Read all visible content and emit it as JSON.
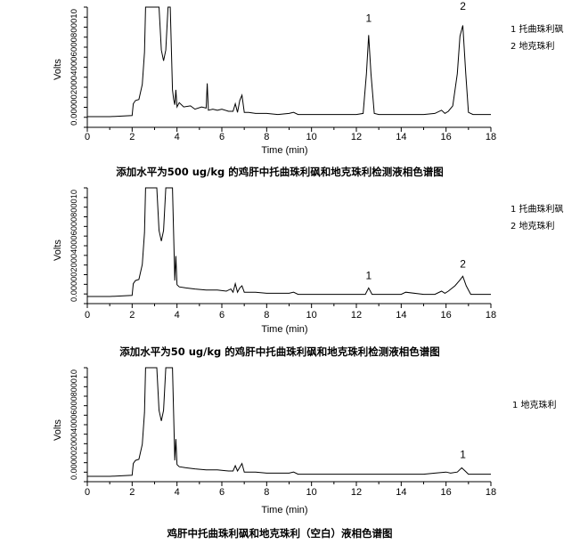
{
  "chart_data": [
    {
      "type": "line",
      "caption": "添加水平为500 ug/kg 的鸡肝中托曲珠利砜和地克珠利检测液相色谱图",
      "xlabel": "Time (min)",
      "ylabel": "Volts",
      "xlim": [
        0,
        18
      ],
      "x_ticks": [
        "0",
        "2",
        "4",
        "6",
        "8",
        "10",
        "12",
        "14",
        "16",
        "18"
      ],
      "y_tick_text": "0.00000200040006000800010",
      "legend": [
        "1  托曲珠利砜",
        "2  地克珠利"
      ],
      "peak_labels": [
        {
          "text": "1",
          "x": 12.55,
          "y": 0.0085
        },
        {
          "text": "2",
          "x": 16.75,
          "y": 0.0096
        }
      ],
      "series": [
        {
          "x": [
            0,
            1,
            2,
            2.05,
            2.15,
            2.3,
            2.45,
            2.55,
            2.6,
            2.7,
            2.8,
            3.0,
            3.1,
            3.2,
            3.3,
            3.4,
            3.5,
            3.6,
            3.7,
            3.8,
            3.85,
            3.9,
            3.95,
            4.0,
            4.1,
            4.3,
            4.6,
            4.8,
            5.1,
            5.3,
            5.35,
            5.4,
            5.6,
            5.8,
            6.0,
            6.3,
            6.5,
            6.6,
            6.7,
            6.8,
            6.9,
            7.0,
            7.2,
            7.5,
            8.0,
            8.5,
            9.0,
            9.2,
            9.4,
            10.0,
            11.0,
            12.0,
            12.3,
            12.45,
            12.55,
            12.65,
            12.8,
            13.0,
            14.0,
            15.0,
            15.5,
            15.8,
            15.95,
            16.1,
            16.3,
            16.5,
            16.62,
            16.75,
            16.88,
            17.0,
            17.2,
            17.5,
            18.0
          ],
          "y": [
            0,
            0,
            0.0001,
            0.0012,
            0.0015,
            0.0016,
            0.003,
            0.006,
            0.0102,
            0.0102,
            0.0102,
            0.0102,
            0.0102,
            0.0102,
            0.0062,
            0.0052,
            0.0062,
            0.0102,
            0.0102,
            0.0025,
            0.0016,
            0.0011,
            0.0025,
            0.0009,
            0.0013,
            0.0009,
            0.001,
            0.0007,
            0.0009,
            0.0008,
            0.0031,
            0.0006,
            0.0007,
            0.0006,
            0.0007,
            0.0005,
            0.0005,
            0.0012,
            0.0004,
            0.0015,
            0.002,
            0.0004,
            0.0004,
            0.0003,
            0.0003,
            0.0002,
            0.0003,
            0.0004,
            0.0002,
            0.0002,
            0.0002,
            0.0002,
            0.0003,
            0.004,
            0.0076,
            0.004,
            0.0003,
            0.0002,
            0.0002,
            0.0002,
            0.0003,
            0.0006,
            0.0003,
            0.0005,
            0.001,
            0.004,
            0.0075,
            0.0085,
            0.004,
            0.0004,
            0.0002,
            0.0002,
            0.0002
          ]
        }
      ]
    },
    {
      "type": "line",
      "caption": "添加水平为50 ug/kg 的鸡肝中托曲珠利砜和地克珠利检测液相色谱图",
      "xlabel": "Time (min)",
      "ylabel": "Volts",
      "xlim": [
        0,
        18
      ],
      "x_ticks": [
        "0",
        "2",
        "4",
        "6",
        "8",
        "10",
        "12",
        "14",
        "16",
        "18"
      ],
      "y_tick_text": "0.00000200040006000800010",
      "legend": [
        "1  托曲珠利砜",
        "2  地克珠利"
      ],
      "peak_labels": [
        {
          "text": "1",
          "x": 12.55,
          "y": 0.0013
        },
        {
          "text": "2",
          "x": 16.75,
          "y": 0.0024
        }
      ],
      "series": [
        {
          "x": [
            0,
            1,
            2,
            2.05,
            2.15,
            2.3,
            2.45,
            2.55,
            2.6,
            2.7,
            3.0,
            3.1,
            3.2,
            3.3,
            3.4,
            3.5,
            3.6,
            3.8,
            3.9,
            3.95,
            4.0,
            4.1,
            4.4,
            4.8,
            5.3,
            5.8,
            6.2,
            6.4,
            6.5,
            6.6,
            6.7,
            6.8,
            6.9,
            7.0,
            7.5,
            8.0,
            9.0,
            9.2,
            9.4,
            10.0,
            11.0,
            12.0,
            12.4,
            12.55,
            12.7,
            13.0,
            14.0,
            14.2,
            15.0,
            15.5,
            15.8,
            15.95,
            16.1,
            16.4,
            16.6,
            16.75,
            16.9,
            17.1,
            17.5,
            18.0
          ],
          "y": [
            0,
            0,
            0.0001,
            0.0012,
            0.0015,
            0.0016,
            0.003,
            0.006,
            0.0102,
            0.0102,
            0.0102,
            0.0102,
            0.0062,
            0.0052,
            0.0062,
            0.0102,
            0.0102,
            0.0102,
            0.0015,
            0.0038,
            0.0011,
            0.0009,
            0.0008,
            0.0007,
            0.0006,
            0.0006,
            0.0005,
            0.0007,
            0.0004,
            0.0012,
            0.0004,
            0.0008,
            0.001,
            0.0004,
            0.0004,
            0.0003,
            0.0003,
            0.0004,
            0.0002,
            0.0002,
            0.0002,
            0.0002,
            0.0002,
            0.0008,
            0.0002,
            0.0002,
            0.0002,
            0.0004,
            0.0002,
            0.0002,
            0.0005,
            0.0003,
            0.0005,
            0.001,
            0.0015,
            0.0019,
            0.001,
            0.0002,
            0.0002,
            0.0002
          ]
        }
      ]
    },
    {
      "type": "line",
      "caption": "鸡肝中托曲珠利砜和地克珠利（空白）液相色谱图",
      "xlabel": "Time (min)",
      "ylabel": "Volts",
      "xlim": [
        0,
        18
      ],
      "x_ticks": [
        "0",
        "2",
        "4",
        "6",
        "8",
        "10",
        "12",
        "14",
        "16",
        "18"
      ],
      "y_tick_text": "0.00000200040006000800010",
      "legend": [
        "1 地克珠利"
      ],
      "peak_labels": [
        {
          "text": "1",
          "x": 16.75,
          "y": 0.0014
        }
      ],
      "series": [
        {
          "x": [
            0,
            1,
            2,
            2.05,
            2.15,
            2.3,
            2.45,
            2.55,
            2.6,
            2.7,
            3.0,
            3.1,
            3.2,
            3.3,
            3.4,
            3.5,
            3.6,
            3.8,
            3.9,
            3.95,
            4.0,
            4.1,
            4.4,
            4.8,
            5.3,
            5.8,
            6.3,
            6.5,
            6.6,
            6.7,
            6.9,
            7.0,
            7.5,
            8.0,
            9.0,
            9.2,
            9.4,
            10.0,
            12.0,
            14.0,
            15.0,
            15.5,
            16.0,
            16.2,
            16.5,
            16.7,
            16.85,
            17.0,
            17.5,
            18.0
          ],
          "y": [
            0,
            0,
            0.0001,
            0.0012,
            0.0015,
            0.0016,
            0.003,
            0.006,
            0.0102,
            0.0102,
            0.0102,
            0.0102,
            0.0062,
            0.0052,
            0.0062,
            0.0102,
            0.0102,
            0.0102,
            0.0015,
            0.0035,
            0.0011,
            0.0009,
            0.0008,
            0.0007,
            0.0006,
            0.0006,
            0.0005,
            0.0005,
            0.001,
            0.0005,
            0.0012,
            0.0004,
            0.0004,
            0.0003,
            0.0003,
            0.0004,
            0.0002,
            0.0002,
            0.0002,
            0.0002,
            0.0002,
            0.0003,
            0.0004,
            0.0003,
            0.0004,
            0.0008,
            0.0005,
            0.0002,
            0.0002,
            0.0002
          ]
        }
      ]
    }
  ]
}
